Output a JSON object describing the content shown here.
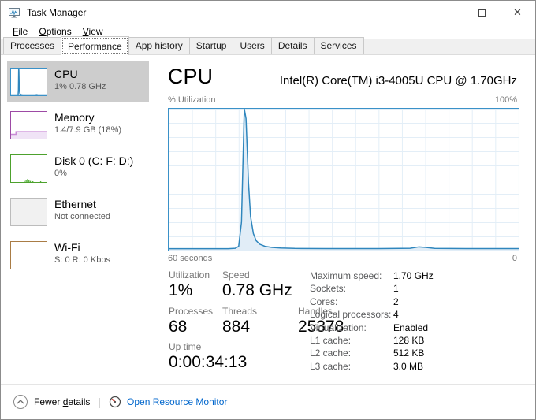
{
  "window": {
    "title": "Task Manager",
    "close_glyph": "✕"
  },
  "menu": {
    "items": [
      {
        "key": "F",
        "rest": "ile"
      },
      {
        "key": "O",
        "rest": "ptions"
      },
      {
        "key": "V",
        "rest": "iew"
      }
    ]
  },
  "tabs": {
    "active": "Performance",
    "items": [
      "Processes",
      "Performance",
      "App history",
      "Startup",
      "Users",
      "Details",
      "Services"
    ]
  },
  "sidebar": {
    "items": [
      {
        "id": "cpu",
        "label": "CPU",
        "sublabel": "1% 0.78 GHz",
        "color": "#3a91c8",
        "selected": true
      },
      {
        "id": "memory",
        "label": "Memory",
        "sublabel": "1.4/7.9 GB (18%)",
        "color": "#9d4aa5",
        "selected": false
      },
      {
        "id": "disk",
        "label": "Disk 0 (C: F: D:)",
        "sublabel": "0%",
        "color": "#4da12d",
        "selected": false
      },
      {
        "id": "ethernet",
        "label": "Ethernet",
        "sublabel": "Not connected",
        "color": "#bcbcbc",
        "selected": false
      },
      {
        "id": "wifi",
        "label": "Wi-Fi",
        "sublabel": "S: 0 R: 0 Kbps",
        "color": "#a97c45",
        "selected": false
      }
    ]
  },
  "main": {
    "title": "CPU",
    "subtitle": "Intel(R) Core(TM) i3-4005U CPU @ 1.70GHz",
    "axis_top_left": "% Utilization",
    "axis_top_right": "100%",
    "axis_bottom_left": "60 seconds",
    "axis_bottom_right": "0",
    "stats": {
      "utilization": {
        "label": "Utilization",
        "value": "1%"
      },
      "speed": {
        "label": "Speed",
        "value": "0.78 GHz"
      },
      "processes": {
        "label": "Processes",
        "value": "68"
      },
      "threads": {
        "label": "Threads",
        "value": "884"
      },
      "handles": {
        "label": "Handles",
        "value": "25378"
      },
      "uptime": {
        "label": "Up time",
        "value": "0:00:34:13"
      }
    },
    "details": [
      {
        "label": "Maximum speed:",
        "value": "1.70 GHz"
      },
      {
        "label": "Sockets:",
        "value": "1"
      },
      {
        "label": "Cores:",
        "value": "2"
      },
      {
        "label": "Logical processors:",
        "value": "4"
      },
      {
        "label": "Virtualization:",
        "value": "Enabled"
      },
      {
        "label": "L1 cache:",
        "value": "128 KB"
      },
      {
        "label": "L2 cache:",
        "value": "512 KB"
      },
      {
        "label": "L3 cache:",
        "value": "3.0 MB"
      }
    ]
  },
  "chart_data": {
    "type": "area",
    "title": "CPU % Utilization history",
    "ylabel": "% Utilization",
    "ylim": [
      0,
      100
    ],
    "xlabel_left": "60 seconds",
    "xlabel_right": "0",
    "grid": true,
    "border_color": "#3a91c8",
    "grid_color": "#e3eef7",
    "line_color": "#2f86bd",
    "fill_color": "#e1edf7",
    "points": [
      [
        0,
        1.3
      ],
      [
        17,
        1.3
      ],
      [
        19,
        1.6
      ],
      [
        20,
        3
      ],
      [
        20.8,
        20
      ],
      [
        21.6,
        100
      ],
      [
        22.1,
        93
      ],
      [
        22.8,
        48
      ],
      [
        23.4,
        24
      ],
      [
        24.2,
        12
      ],
      [
        25,
        7
      ],
      [
        26,
        4.5
      ],
      [
        27.5,
        3
      ],
      [
        29.5,
        2.2
      ],
      [
        32,
        1.8
      ],
      [
        36,
        1.5
      ],
      [
        45,
        1.4
      ],
      [
        60,
        1.4
      ],
      [
        69,
        1.6
      ],
      [
        71.5,
        2.6
      ],
      [
        73.5,
        2.2
      ],
      [
        76,
        1.5
      ],
      [
        85,
        1.4
      ],
      [
        100,
        1.4
      ]
    ]
  },
  "footer": {
    "fewer_details": {
      "pre": "Fewer ",
      "key": "d",
      "rest": "etails"
    },
    "resource_monitor": "Open Resource Monitor"
  }
}
